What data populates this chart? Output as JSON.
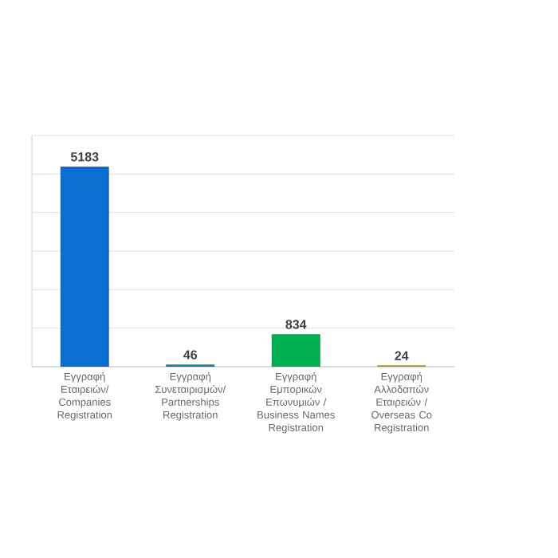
{
  "chart_data": {
    "type": "bar",
    "categories": [
      "Εγγραφή Εταιρειών/ Companies Registration",
      "Εγγραφή Συνεταιρισμών/ Partnerships Registration",
      "Εγγραφή Εμπορικών Επωνυμιών / Business Names Registration",
      "Εγγραφή Αλλοδαπών Εταιρειών / Overseas Co Registration"
    ],
    "values": [
      5183,
      46,
      834,
      24
    ],
    "colors": [
      "#0a6fd0",
      "#1a8a9a",
      "#00b050",
      "#d4a300"
    ],
    "ylim": [
      0,
      6000
    ],
    "yticks": [
      {
        "value": 0,
        "label": null
      },
      {
        "value": 1000,
        "label": null
      },
      {
        "value": 2000,
        "label": null
      },
      {
        "value": 3000,
        "label": null
      },
      {
        "value": 4000,
        "label": null
      },
      {
        "value": 5000,
        "label": null
      },
      {
        "value": 6000,
        "label": null
      }
    ],
    "grid": "y",
    "tick_labels": "x",
    "data_labels": true
  }
}
